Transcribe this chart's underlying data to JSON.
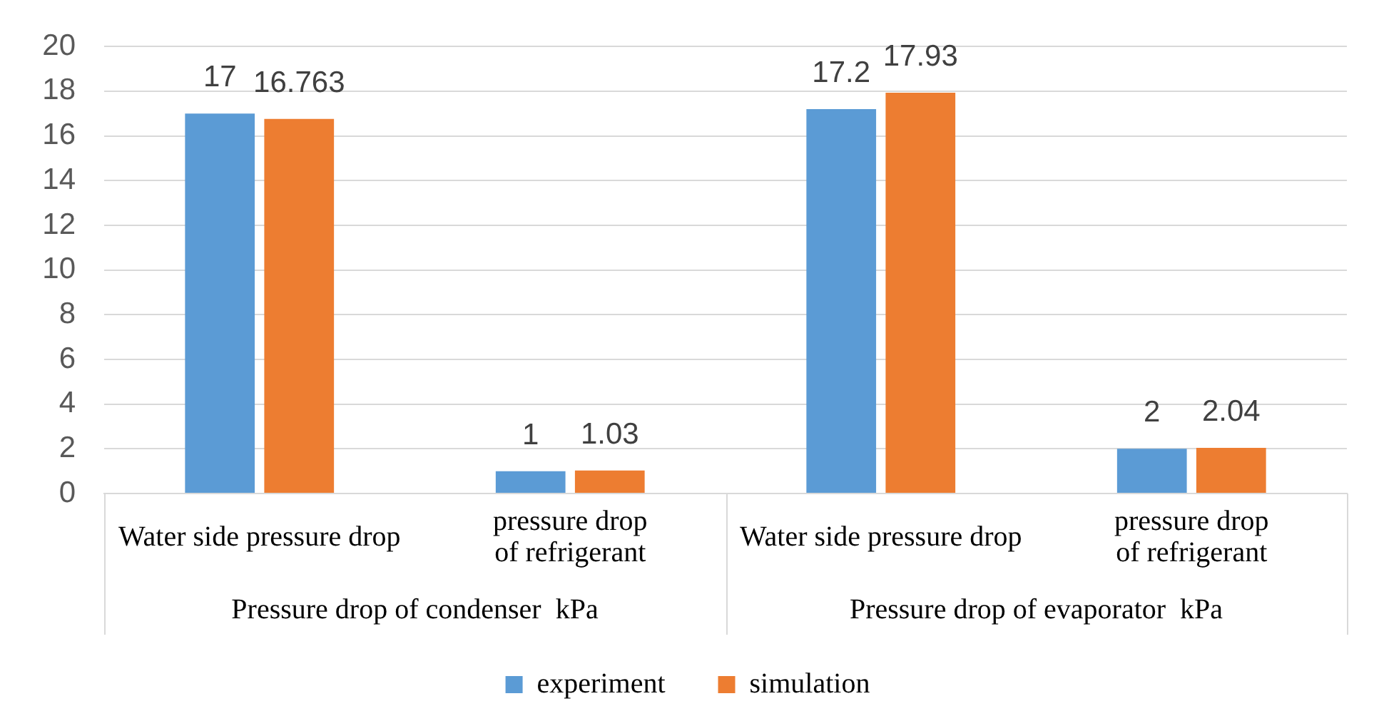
{
  "chart_data": {
    "type": "bar",
    "categories": [
      "Water side pressure drop",
      "pressure drop of refrigerant",
      "Water side pressure drop",
      "pressure drop of refrigerant"
    ],
    "series": [
      {
        "name": "experiment",
        "color": "#5b9bd5",
        "values": [
          17,
          1,
          17.2,
          2
        ]
      },
      {
        "name": "simulation",
        "color": "#ed7d31",
        "values": [
          16.763,
          1.03,
          17.93,
          2.04
        ]
      }
    ],
    "annotations": [
      "Pressure drop of condenser  kPa",
      "Pressure drop of evaporator  kPa"
    ],
    "ylim": [
      0,
      20
    ],
    "yticks": [
      0,
      2,
      4,
      6,
      8,
      10,
      12,
      14,
      16,
      18,
      20
    ],
    "grid": "y",
    "legend": "bottom",
    "data_labels": true
  }
}
